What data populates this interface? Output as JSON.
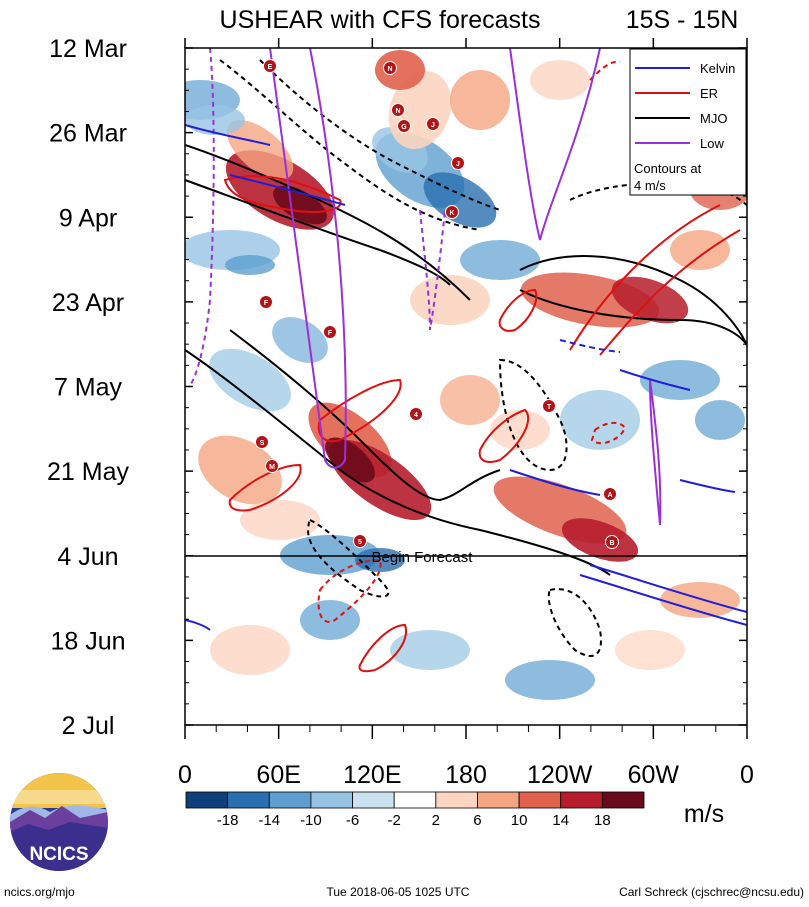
{
  "chart_data": {
    "type": "heatmap",
    "title": "USHEAR with CFS forecasts",
    "region": "15S - 15N",
    "y_tick_labels": [
      "12 Mar",
      "26 Mar",
      "9 Apr",
      "23 Apr",
      "7 May",
      "21 May",
      "4 Jun",
      "18 Jun",
      "2 Jul"
    ],
    "x_tick_labels": [
      "0",
      "60E",
      "120E",
      "180",
      "120W",
      "60W",
      "0"
    ],
    "x_range_deg_east": [
      0,
      360
    ],
    "forecast_line_label": "Begin Forecast",
    "forecast_start": "4 Jun",
    "legend": {
      "placement": "top-right",
      "entries": [
        {
          "label": "Kelvin",
          "color": "#1f1fd8"
        },
        {
          "label": "ER",
          "color": "#e01010"
        },
        {
          "label": "MJO",
          "color": "#000000"
        },
        {
          "label": "Low",
          "color": "#9b30d8"
        }
      ],
      "note_line1": "Contours at",
      "note_line2": "4 m/s"
    },
    "colorbar": {
      "units": "m/s",
      "tick_labels": [
        "-18",
        "-14",
        "-10",
        "-6",
        "-2",
        "2",
        "6",
        "10",
        "14",
        "18"
      ],
      "colors": [
        "#0f3f7a",
        "#2a6fb0",
        "#5e9fd0",
        "#97c4e4",
        "#cde2f1",
        "#ffffff",
        "#fcd5c0",
        "#f4a582",
        "#e0624d",
        "#b61d2c",
        "#6b0a1c"
      ]
    },
    "storm_markers": [
      "E",
      "N",
      "N",
      "G",
      "J",
      "J",
      "K",
      "F",
      "F",
      "4",
      "S",
      "M",
      "5",
      "T",
      "A",
      "B"
    ]
  },
  "footer": {
    "left": "ncics.org/mjo",
    "center": "Tue 2018-06-05 1025 UTC",
    "right": "Carl Schreck (cjschrec@ncsu.edu)"
  },
  "logo": {
    "text": "NCICS"
  }
}
